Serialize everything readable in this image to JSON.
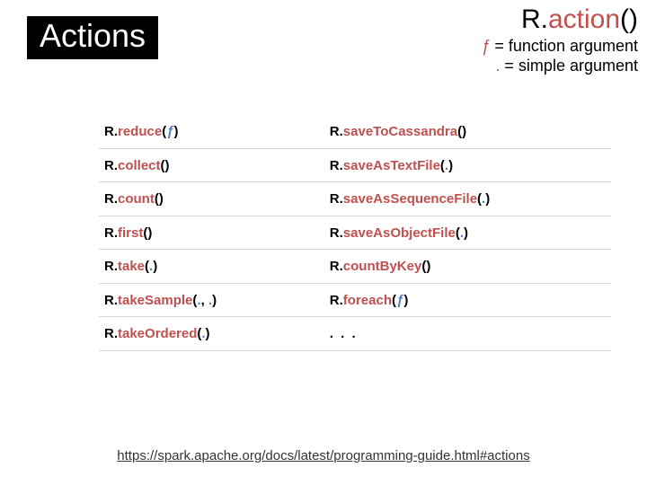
{
  "colors": {
    "accent": "#c0504d",
    "arg_blue": "#4f81bd",
    "badge_bg": "#000000",
    "badge_fg": "#ffffff",
    "row_border": "#d9d9d9",
    "text": "#000000",
    "bg": "#ffffff"
  },
  "typography": {
    "title_fontsize": 36,
    "header_sig_fontsize": 30,
    "legend_fontsize": 18,
    "table_fontsize": 15,
    "table_fontweight": 700
  },
  "slide": {
    "title": "Actions",
    "header_sig": {
      "r": "R.",
      "action": "action",
      "parens": "()"
    },
    "legend": {
      "f_sym": "ƒ",
      "f_desc": " = function argument",
      "dot_sym": ".",
      "dot_desc": " = simple argument"
    },
    "table": {
      "rows": [
        {
          "l_obj": "R.",
          "l_m": "reduce",
          "l_args": [
            {
              "t": "sym",
              "v": "("
            },
            {
              "t": "f",
              "v": "ƒ"
            },
            {
              "t": "sym",
              "v": ")"
            }
          ],
          "r_obj": "R.",
          "r_m": "saveToCassandra",
          "r_args": [
            {
              "t": "sym",
              "v": "()"
            }
          ]
        },
        {
          "l_obj": "R.",
          "l_m": "collect",
          "l_args": [
            {
              "t": "sym",
              "v": "()"
            }
          ],
          "r_obj": "R.",
          "r_m": "saveAsTextFile",
          "r_args": [
            {
              "t": "sym",
              "v": "("
            },
            {
              "t": "p",
              "v": "."
            },
            {
              "t": "sym",
              "v": ")"
            }
          ]
        },
        {
          "l_obj": "R.",
          "l_m": "count",
          "l_args": [
            {
              "t": "sym",
              "v": "()"
            }
          ],
          "r_obj": "R.",
          "r_m": "saveAsSequenceFile",
          "r_args": [
            {
              "t": "sym",
              "v": "("
            },
            {
              "t": "p",
              "v": "."
            },
            {
              "t": "sym",
              "v": ")"
            }
          ]
        },
        {
          "l_obj": "R.",
          "l_m": "first",
          "l_args": [
            {
              "t": "sym",
              "v": "()"
            }
          ],
          "r_obj": "R.",
          "r_m": "saveAsObjectFile",
          "r_args": [
            {
              "t": "sym",
              "v": "("
            },
            {
              "t": "p",
              "v": "."
            },
            {
              "t": "sym",
              "v": ")"
            }
          ]
        },
        {
          "l_obj": "R.",
          "l_m": "take",
          "l_args": [
            {
              "t": "sym",
              "v": "("
            },
            {
              "t": "p",
              "v": "."
            },
            {
              "t": "sym",
              "v": ")"
            }
          ],
          "r_obj": "R.",
          "r_m": "countByKey",
          "r_args": [
            {
              "t": "sym",
              "v": "()"
            }
          ]
        },
        {
          "l_obj": "R.",
          "l_m": "takeSample",
          "l_args": [
            {
              "t": "sym",
              "v": "("
            },
            {
              "t": "p",
              "v": "."
            },
            {
              "t": "sym",
              "v": ", "
            },
            {
              "t": "p",
              "v": "."
            },
            {
              "t": "sym",
              "v": ")"
            }
          ],
          "r_obj": "R.",
          "r_m": "foreach",
          "r_args": [
            {
              "t": "sym",
              "v": "("
            },
            {
              "t": "f",
              "v": "ƒ"
            },
            {
              "t": "sym",
              "v": ")"
            }
          ]
        },
        {
          "l_obj": "R.",
          "l_m": "takeOrdered",
          "l_args": [
            {
              "t": "sym",
              "v": "("
            },
            {
              "t": "p",
              "v": "."
            },
            {
              "t": "sym",
              "v": ")"
            }
          ],
          "r_ellipsis": ". . ."
        }
      ]
    },
    "footer_link_text": "https://spark.apache.org/docs/latest/programming-guide.html#actions"
  }
}
